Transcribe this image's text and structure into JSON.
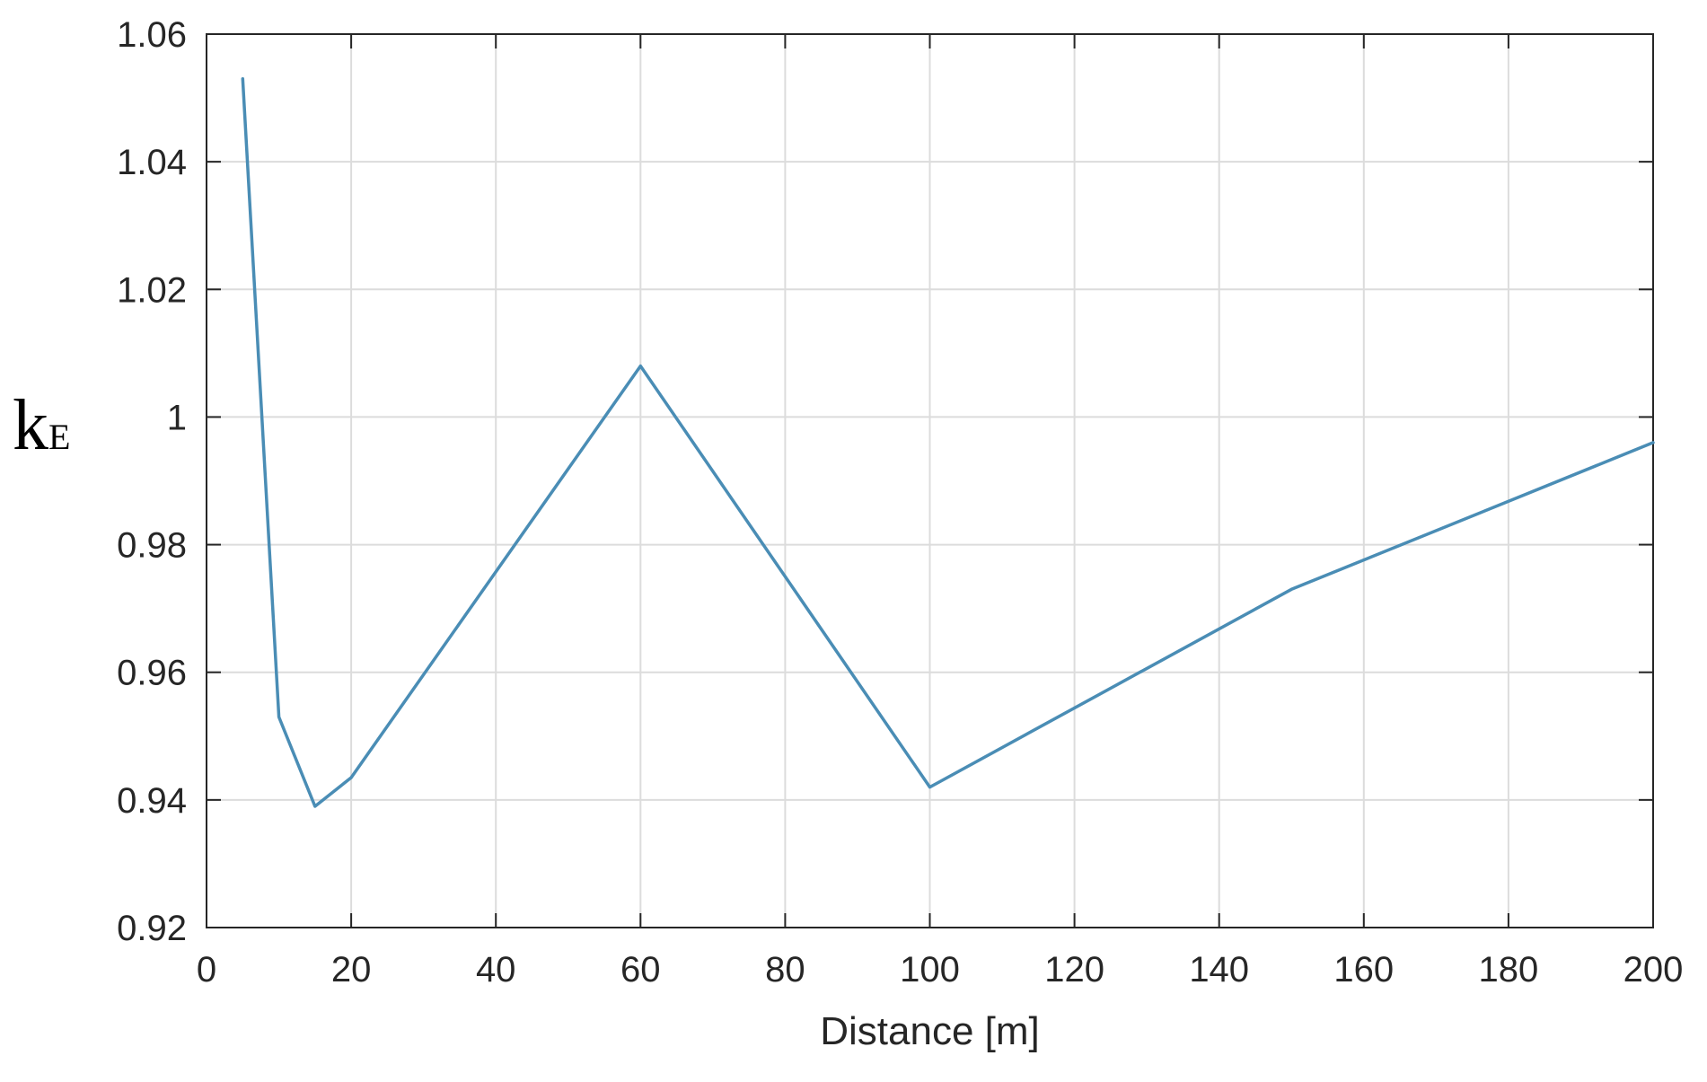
{
  "chart_data": {
    "type": "line",
    "title": "",
    "xlabel": "Distance [m]",
    "ylabel": {
      "main": "k",
      "sub": "E"
    },
    "xlim": [
      0,
      200
    ],
    "ylim": [
      0.92,
      1.06
    ],
    "xticks": [
      0,
      20,
      40,
      60,
      80,
      100,
      120,
      140,
      160,
      180,
      200
    ],
    "yticks": [
      0.92,
      0.94,
      0.96,
      0.98,
      1.0,
      1.02,
      1.04,
      1.06
    ],
    "xtick_labels": [
      "0",
      "20",
      "40",
      "60",
      "80",
      "100",
      "120",
      "140",
      "160",
      "180",
      "200"
    ],
    "ytick_labels": [
      "0.92",
      "0.94",
      "0.96",
      "0.98",
      "1",
      "1.02",
      "1.04",
      "1.06"
    ],
    "grid": true,
    "legend": "none",
    "series": [
      {
        "color": "#4a8db5",
        "x": [
          5,
          10,
          15,
          20,
          60,
          100,
          150,
          200
        ],
        "y": [
          1.053,
          0.953,
          0.939,
          0.9435,
          1.008,
          0.942,
          0.973,
          0.996
        ]
      }
    ]
  }
}
